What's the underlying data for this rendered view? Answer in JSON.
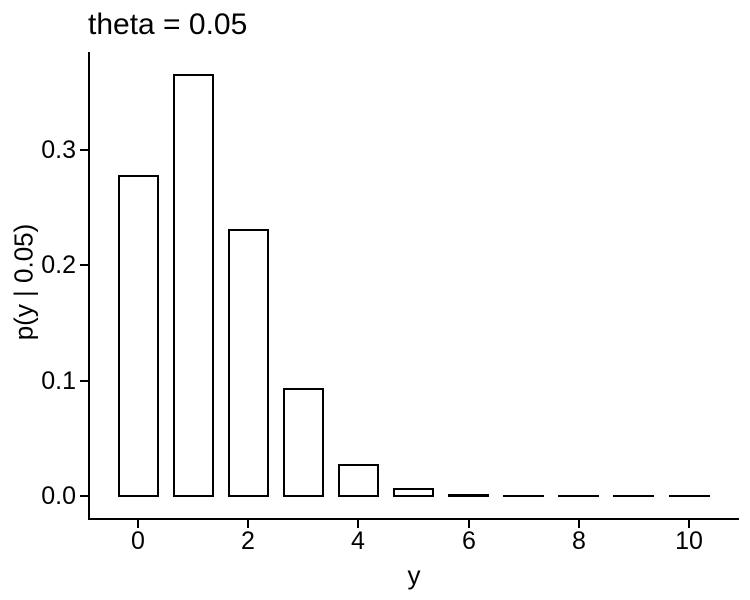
{
  "figure": {
    "background": "#ffffff",
    "foreground": "#000000"
  },
  "chart_data": {
    "type": "bar",
    "title": "theta = 0.05",
    "xlabel": "y",
    "ylabel": "p(y | 0.05)",
    "categories": [
      0,
      1,
      2,
      3,
      4,
      5,
      6,
      7,
      8,
      9,
      10
    ],
    "values": [
      0.2774,
      0.365,
      0.2305,
      0.093,
      0.0269,
      0.006,
      0.001,
      0.0002,
      0.0,
      0.0,
      0.0
    ],
    "x_ticks": [
      0,
      2,
      4,
      6,
      8,
      10
    ],
    "y_tick_labels": [
      "0.0",
      "0.1",
      "0.2",
      "0.3"
    ],
    "y_tick_values": [
      0.0,
      0.1,
      0.2,
      0.3
    ],
    "xlim": [
      -1,
      11
    ],
    "ylim": [
      -0.018,
      0.383
    ],
    "bar_fill": "#ffffff",
    "bar_stroke": "#000000",
    "bar_width_fraction": 0.7,
    "grid": false,
    "legend": false,
    "axis_color": "#000000"
  }
}
